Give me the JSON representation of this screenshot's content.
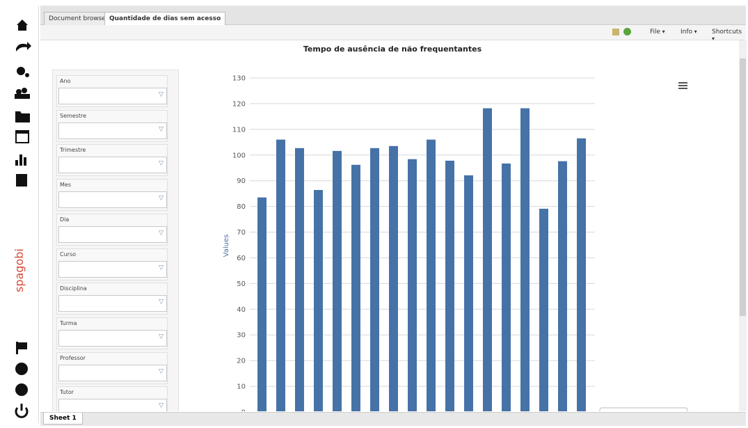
{
  "tabs": [
    "Document browser",
    "Quantidade de dias sem acesso"
  ],
  "toolbar": {
    "menus": [
      "File",
      "Info",
      "Shortcuts"
    ]
  },
  "filters": [
    "Ano",
    "Semestre",
    "Trimestre",
    "Mes",
    "Dia",
    "Curso",
    "Disciplina",
    "Turma",
    "Professor",
    "Tutor"
  ],
  "logo": "spagobi",
  "sheet_tab": "Sheet 1",
  "chart_data": {
    "type": "bar",
    "title": "Tempo de ausência de não frequentantes",
    "y_label": "Values",
    "values": [
      83.5,
      106,
      102.7,
      86.4,
      101.6,
      96.2,
      102.7,
      103.5,
      98.4,
      106,
      97.8,
      92.1,
      118.2,
      96.7,
      118.2,
      79.1,
      97.6,
      106.5
    ],
    "color": "#4572a7",
    "ylim": [
      0,
      130
    ],
    "yticks": [
      0,
      10,
      20,
      30,
      40,
      50,
      60,
      70,
      80,
      90,
      100,
      110,
      120,
      130
    ],
    "grid": true
  }
}
